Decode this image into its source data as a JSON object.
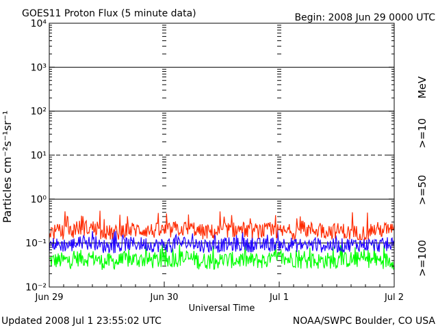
{
  "header": {
    "title": "GOES11 Proton Flux (5 minute data)",
    "begin": "Begin: 2008 Jun 29 0000 UTC"
  },
  "footer": {
    "updated": "Updated 2008 Jul  1 23:55:02 UTC",
    "source": "NOAA/SWPC Boulder, CO USA"
  },
  "chart_data": {
    "type": "line",
    "title": "GOES11 Proton Flux (5 minute data)",
    "xlabel": "Universal Time",
    "ylabel": "Particles cm⁻²s⁻¹sr⁻¹",
    "y_scale": "log",
    "ylim": [
      0.01,
      10000
    ],
    "xlim": [
      "2008-06-29T00:00",
      "2008-07-02T00:00"
    ],
    "x_ticks": [
      "Jun 29",
      "Jun 30",
      "Jul 1",
      "Jul 2"
    ],
    "y_ticks": [
      "10⁻²",
      "10⁻¹",
      "10⁰",
      "10¹",
      "10²",
      "10³",
      "10⁴"
    ],
    "units_label": "MeV",
    "grid": {
      "solid_levels": [
        0.1,
        1,
        100,
        1000
      ],
      "dashed_levels": [
        10
      ]
    },
    "series": [
      {
        "name": ">=10",
        "color": "#ff2a00",
        "typical": 0.18,
        "range": [
          0.12,
          0.55
        ],
        "values": [
          0.18,
          0.22,
          0.17,
          0.2,
          0.19,
          0.21,
          0.18,
          0.2,
          0.19,
          0.18,
          0.2,
          0.19,
          0.17,
          0.2
        ]
      },
      {
        "name": ">=50",
        "color": "#1f00ff",
        "typical": 0.09,
        "range": [
          0.05,
          0.2
        ],
        "values": [
          0.09,
          0.1,
          0.085,
          0.095,
          0.09,
          0.1,
          0.088,
          0.092,
          0.09,
          0.095,
          0.09,
          0.088,
          0.092,
          0.09
        ]
      },
      {
        "name": ">=100",
        "color": "#00ff00",
        "typical": 0.04,
        "range": [
          0.02,
          0.1
        ],
        "values": [
          0.04,
          0.045,
          0.038,
          0.042,
          0.04,
          0.044,
          0.039,
          0.041,
          0.04,
          0.043,
          0.039,
          0.04,
          0.042,
          0.04
        ]
      }
    ]
  }
}
